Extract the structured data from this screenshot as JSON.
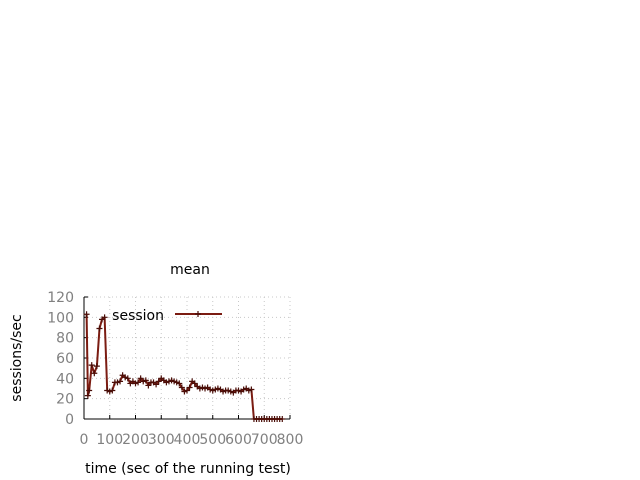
{
  "chart_data": {
    "type": "line",
    "title": "mean",
    "xlabel": "time (sec of the running test)",
    "ylabel": "sessions/sec",
    "xlim": [
      0,
      800
    ],
    "ylim": [
      0,
      120
    ],
    "x_ticks": [
      "0",
      "100",
      "200",
      "300",
      "400",
      "500",
      "600",
      "700",
      "800"
    ],
    "y_ticks": [
      "0",
      "20",
      "40",
      "60",
      "80",
      "100",
      "120"
    ],
    "grid": true,
    "legend_position": "top-left",
    "series": [
      {
        "name": "session",
        "color": "#7b1c12",
        "marker": "plus",
        "x": [
          10,
          15,
          20,
          30,
          40,
          50,
          60,
          70,
          80,
          90,
          100,
          110,
          120,
          130,
          140,
          150,
          160,
          170,
          180,
          190,
          200,
          210,
          220,
          230,
          240,
          250,
          260,
          270,
          280,
          290,
          300,
          310,
          320,
          330,
          340,
          350,
          360,
          370,
          380,
          390,
          400,
          410,
          420,
          430,
          440,
          450,
          460,
          470,
          480,
          490,
          500,
          510,
          520,
          530,
          540,
          550,
          560,
          570,
          580,
          590,
          600,
          610,
          620,
          630,
          640,
          650,
          660,
          670,
          680,
          690,
          700,
          710,
          720,
          730,
          740,
          750,
          760,
          770
        ],
        "y": [
          103,
          23,
          28,
          53,
          45,
          52,
          89,
          98,
          100,
          28,
          27,
          28,
          36,
          36,
          37,
          43,
          41,
          40,
          35,
          37,
          35,
          36,
          40,
          37,
          38,
          33,
          36,
          36,
          34,
          37,
          40,
          38,
          36,
          37,
          38,
          37,
          36,
          35,
          31,
          27,
          28,
          31,
          37,
          35,
          32,
          30,
          31,
          30,
          31,
          29,
          28,
          29,
          30,
          29,
          27,
          28,
          28,
          27,
          26,
          28,
          28,
          27,
          29,
          30,
          28,
          29,
          0,
          0,
          0,
          0,
          0,
          0,
          0,
          0,
          0,
          0,
          0,
          0
        ]
      }
    ]
  }
}
